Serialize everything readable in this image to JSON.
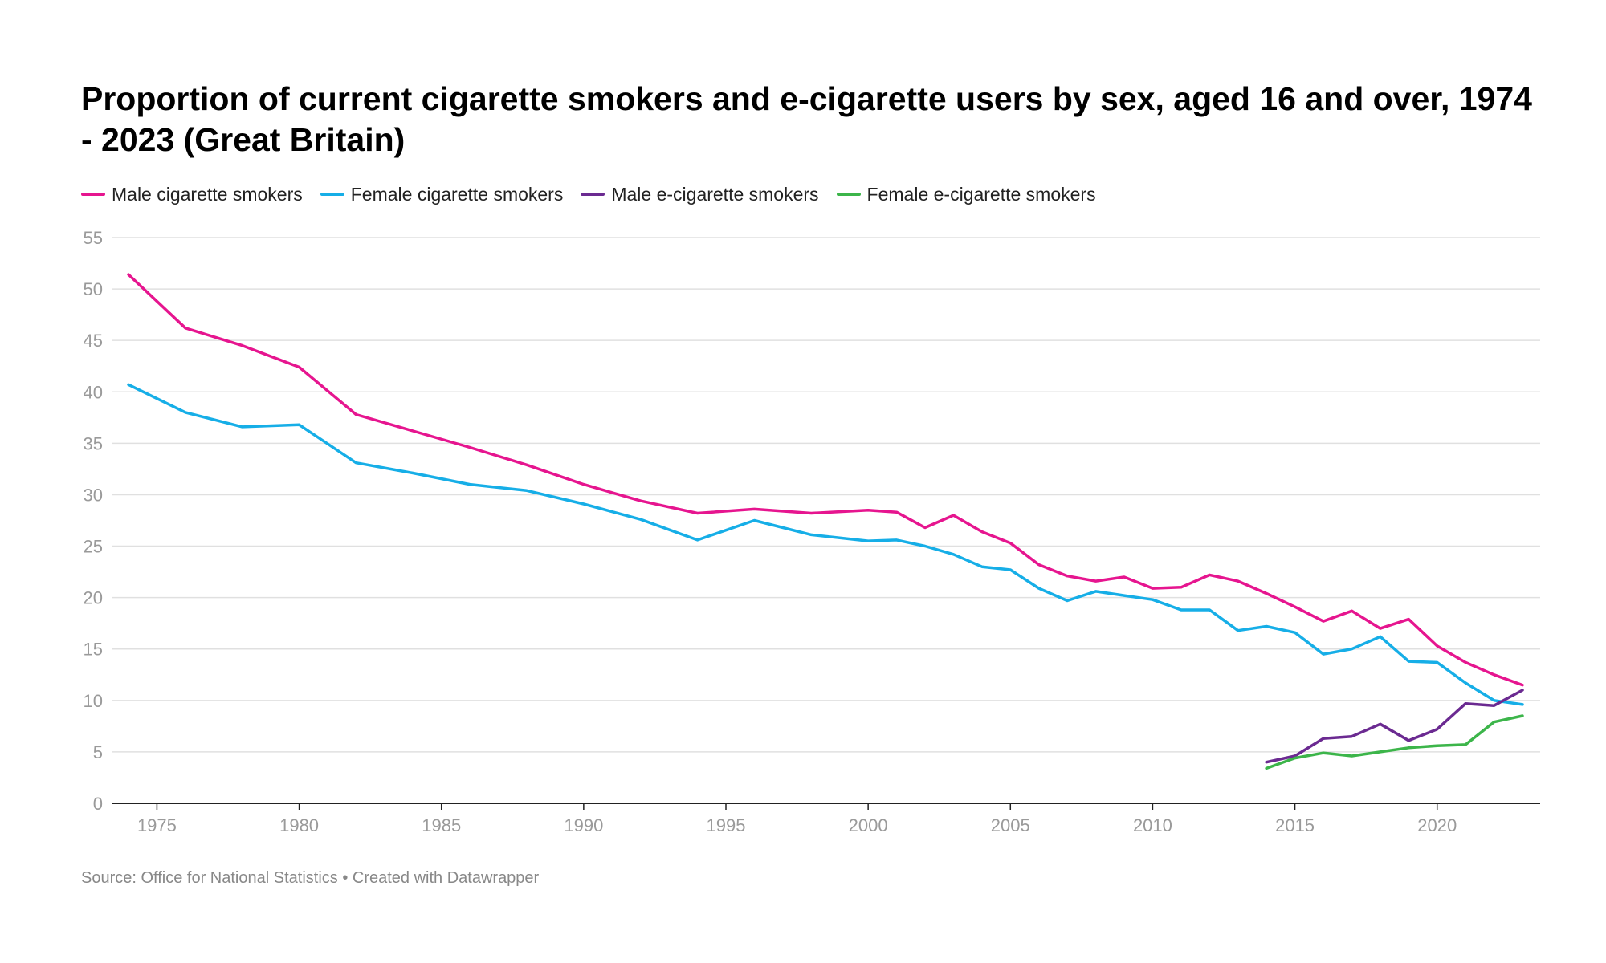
{
  "source_text": "Source: Office for National Statistics • Created with Datawrapper",
  "chart_data": {
    "type": "line",
    "title": "Proportion of current cigarette smokers and e-cigarette users by sex, aged 16 and over, 1974 - 2023 (Great Britain)",
    "xlabel": "",
    "ylabel": "",
    "xlim": [
      1974,
      2023
    ],
    "ylim": [
      0,
      55
    ],
    "x_ticks": [
      1975,
      1980,
      1985,
      1990,
      1995,
      2000,
      2005,
      2010,
      2015,
      2020
    ],
    "y_ticks": [
      0,
      5,
      10,
      15,
      20,
      25,
      30,
      35,
      40,
      45,
      50,
      55
    ],
    "grid": true,
    "legend_position": "top-left",
    "series": [
      {
        "name": "Male cigarette smokers",
        "color": "#e6158f",
        "points": [
          [
            1974,
            51.4
          ],
          [
            1976,
            46.2
          ],
          [
            1978,
            44.5
          ],
          [
            1980,
            42.4
          ],
          [
            1982,
            37.8
          ],
          [
            1984,
            36.2
          ],
          [
            1986,
            34.6
          ],
          [
            1988,
            32.9
          ],
          [
            1990,
            31.0
          ],
          [
            1992,
            29.4
          ],
          [
            1994,
            28.2
          ],
          [
            1996,
            28.6
          ],
          [
            1998,
            28.2
          ],
          [
            2000,
            28.5
          ],
          [
            2001,
            28.3
          ],
          [
            2002,
            26.8
          ],
          [
            2003,
            28.0
          ],
          [
            2004,
            26.4
          ],
          [
            2005,
            25.3
          ],
          [
            2006,
            23.2
          ],
          [
            2007,
            22.1
          ],
          [
            2008,
            21.6
          ],
          [
            2009,
            22.0
          ],
          [
            2010,
            20.9
          ],
          [
            2011,
            21.0
          ],
          [
            2012,
            22.2
          ],
          [
            2013,
            21.6
          ],
          [
            2014,
            20.4
          ],
          [
            2015,
            19.1
          ],
          [
            2016,
            17.7
          ],
          [
            2017,
            18.7
          ],
          [
            2018,
            17.0
          ],
          [
            2019,
            17.9
          ],
          [
            2020,
            15.3
          ],
          [
            2021,
            13.7
          ],
          [
            2022,
            12.5
          ],
          [
            2023,
            11.5
          ]
        ]
      },
      {
        "name": "Female cigarette smokers",
        "color": "#16aee7",
        "points": [
          [
            1974,
            40.7
          ],
          [
            1976,
            38.0
          ],
          [
            1978,
            36.6
          ],
          [
            1980,
            36.8
          ],
          [
            1982,
            33.1
          ],
          [
            1984,
            32.1
          ],
          [
            1986,
            31.0
          ],
          [
            1988,
            30.4
          ],
          [
            1990,
            29.1
          ],
          [
            1992,
            27.6
          ],
          [
            1994,
            25.6
          ],
          [
            1996,
            27.5
          ],
          [
            1998,
            26.1
          ],
          [
            2000,
            25.5
          ],
          [
            2001,
            25.6
          ],
          [
            2002,
            25.0
          ],
          [
            2003,
            24.2
          ],
          [
            2004,
            23.0
          ],
          [
            2005,
            22.7
          ],
          [
            2006,
            20.9
          ],
          [
            2007,
            19.7
          ],
          [
            2008,
            20.6
          ],
          [
            2009,
            20.2
          ],
          [
            2010,
            19.8
          ],
          [
            2011,
            18.8
          ],
          [
            2012,
            18.8
          ],
          [
            2013,
            16.8
          ],
          [
            2014,
            17.2
          ],
          [
            2015,
            16.6
          ],
          [
            2016,
            14.5
          ],
          [
            2017,
            15.0
          ],
          [
            2018,
            16.2
          ],
          [
            2019,
            13.8
          ],
          [
            2020,
            13.7
          ],
          [
            2021,
            11.7
          ],
          [
            2022,
            10.0
          ],
          [
            2023,
            9.6
          ]
        ]
      },
      {
        "name": "Male e-cigarette smokers",
        "color": "#6b2a91",
        "points": [
          [
            2014,
            4.0
          ],
          [
            2015,
            4.6
          ],
          [
            2016,
            6.3
          ],
          [
            2017,
            6.5
          ],
          [
            2018,
            7.7
          ],
          [
            2019,
            6.1
          ],
          [
            2020,
            7.2
          ],
          [
            2021,
            9.7
          ],
          [
            2022,
            9.5
          ],
          [
            2023,
            11.0
          ]
        ]
      },
      {
        "name": "Female e-cigarette smokers",
        "color": "#3cb54a",
        "points": [
          [
            2014,
            3.4
          ],
          [
            2015,
            4.4
          ],
          [
            2016,
            4.9
          ],
          [
            2017,
            4.6
          ],
          [
            2018,
            5.0
          ],
          [
            2019,
            5.4
          ],
          [
            2020,
            5.6
          ],
          [
            2021,
            5.7
          ],
          [
            2022,
            7.9
          ],
          [
            2023,
            8.5
          ]
        ]
      }
    ]
  }
}
